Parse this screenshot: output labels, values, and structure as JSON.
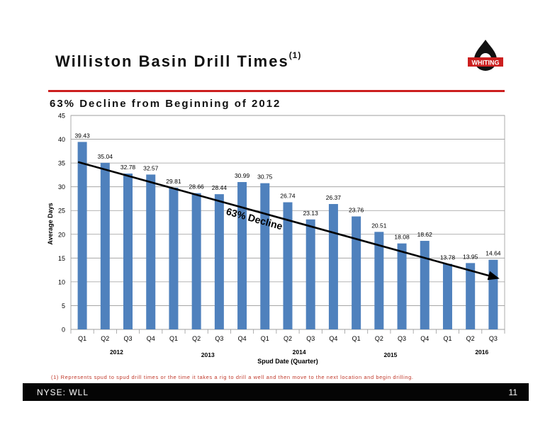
{
  "slide": {
    "title": "Williston Basin Drill Times",
    "title_sup": "(1)",
    "subtitle": "63%  Decline from Beginning of 2012",
    "logo_text": "WHITING",
    "footnote": "(1)  Represents spud to spud drill times or the time it takes a rig to drill a well and then move to the next location and begin drilling.",
    "footer_left": "NYSE:  WLL",
    "page_number": "11",
    "colors": {
      "bar": "#4f81bd",
      "accent_red": "#cc1f1f",
      "footer_bg": "#050505"
    }
  },
  "chart_data": {
    "type": "bar",
    "categories": [
      "Q1",
      "Q2",
      "Q3",
      "Q4",
      "Q1",
      "Q2",
      "Q3",
      "Q4",
      "Q1",
      "Q2",
      "Q3",
      "Q4",
      "Q1",
      "Q2",
      "Q3",
      "Q4",
      "Q1",
      "Q2",
      "Q3"
    ],
    "year_labels": [
      {
        "label": "2012",
        "quarter_index": 1.5
      },
      {
        "label": "2013",
        "quarter_index": 5.5
      },
      {
        "label": "2014",
        "quarter_index": 9.5
      },
      {
        "label": "2015",
        "quarter_index": 13.5
      },
      {
        "label": "2016",
        "quarter_index": 17.5
      }
    ],
    "values": [
      39.43,
      35.04,
      32.78,
      32.57,
      29.81,
      28.66,
      28.44,
      30.99,
      30.75,
      26.74,
      23.13,
      26.37,
      23.76,
      20.51,
      18.08,
      18.62,
      13.78,
      13.95,
      14.64
    ],
    "data_labels": [
      "39.43",
      "35.04",
      "32.78",
      "32.57",
      "29.81",
      "28.66",
      "28.44",
      "30.99",
      "30.75",
      "26.74",
      "23.13",
      "26.37",
      "23.76",
      "20.51",
      "18.08",
      "18.62",
      "13.78",
      "13.95",
      "14.64"
    ],
    "xlabel": "Spud Date (Quarter)",
    "ylabel": "Average Days",
    "ylim": [
      0,
      45
    ],
    "yticks": [
      0,
      5,
      10,
      15,
      20,
      25,
      30,
      35,
      40,
      45
    ],
    "grid": true,
    "trend": {
      "label": "63% Decline",
      "start": {
        "index": 0,
        "value": 35.2
      },
      "end": {
        "index": 18,
        "value": 10.8
      }
    }
  }
}
